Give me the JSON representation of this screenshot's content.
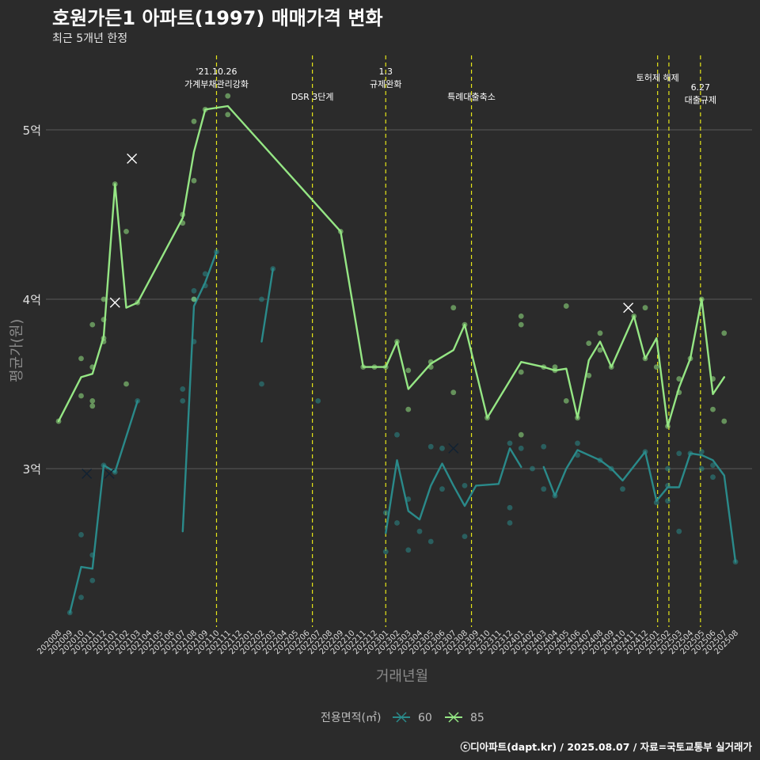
{
  "chart_data": {
    "type": "line",
    "title": "호원가든1 아파트(1997) 매매가격 변화",
    "subtitle": "최근 5개년 한정",
    "xlabel": "거래년월",
    "ylabel": "평균가(원)",
    "caption": "ⓒ디아파트(dapt.kr) / 2025.08.07 / 자료=국토교통부 실거래가",
    "legend_title": "전용면적(㎡)",
    "legend_position": "bottom",
    "grid": true,
    "ylim": [
      2.0,
      5.55
    ],
    "y_ticks": [
      {
        "value": 3,
        "label": "3억"
      },
      {
        "value": 4,
        "label": "4억"
      },
      {
        "value": 5,
        "label": "5억"
      }
    ],
    "months": [
      "202008",
      "202009",
      "202010",
      "202011",
      "202012",
      "202101",
      "202102",
      "202103",
      "202104",
      "202105",
      "202106",
      "202107",
      "202108",
      "202109",
      "202110",
      "202111",
      "202112",
      "202201",
      "202202",
      "202203",
      "202204",
      "202205",
      "202206",
      "202207",
      "202208",
      "202209",
      "202210",
      "202211",
      "202212",
      "202301",
      "202302",
      "202303",
      "202304",
      "202305",
      "202306",
      "202307",
      "202308",
      "202309",
      "202310",
      "202311",
      "202312",
      "202401",
      "202402",
      "202403",
      "202404",
      "202405",
      "202406",
      "202407",
      "202408",
      "202409",
      "202410",
      "202411",
      "202412",
      "202501",
      "202502",
      "202503",
      "202504",
      "202505",
      "202506",
      "202507",
      "202508"
    ],
    "events": [
      {
        "x": 14.0,
        "label": [
          "'21.10.26",
          "가계부채관리강화"
        ],
        "level": 0
      },
      {
        "x": 22.5,
        "label": [
          "DSR 3단계"
        ],
        "level": 1
      },
      {
        "x": 29.0,
        "label": [
          "1.3",
          "규제완화"
        ],
        "level": 0
      },
      {
        "x": 36.6,
        "label": [
          "특례대출축소"
        ],
        "level": 1
      },
      {
        "x": 53.1,
        "label": [
          "토허제 해제"
        ],
        "level": 0
      },
      {
        "x": 54.1,
        "label": [],
        "level": 0
      },
      {
        "x": 56.9,
        "label": [
          "6.27",
          "대출규제"
        ],
        "level": 0
      }
    ],
    "series": [
      {
        "name": "60",
        "color": "#2a8a8a",
        "segments": [
          [
            [
              1,
              2.15
            ],
            [
              2,
              2.42
            ],
            [
              3,
              2.41
            ],
            [
              4,
              3.02
            ],
            [
              5,
              2.98
            ],
            [
              7,
              3.4
            ]
          ],
          [
            [
              11,
              2.63
            ],
            [
              12,
              3.96
            ],
            [
              13,
              4.1
            ],
            [
              14,
              4.28
            ]
          ],
          [
            [
              18,
              3.75
            ],
            [
              19,
              4.18
            ]
          ],
          [
            [
              29,
              2.62
            ],
            [
              30,
              3.05
            ],
            [
              31,
              2.75
            ],
            [
              32,
              2.7
            ],
            [
              33,
              2.9
            ],
            [
              34,
              3.03
            ],
            [
              35,
              2.9
            ],
            [
              36,
              2.78
            ],
            [
              37,
              2.9
            ],
            [
              39,
              2.91
            ],
            [
              40,
              3.12
            ],
            [
              41,
              3.01
            ]
          ],
          [
            [
              43,
              3.01
            ],
            [
              44,
              2.84
            ],
            [
              45,
              3.0
            ],
            [
              46,
              3.11
            ],
            [
              48,
              3.05
            ],
            [
              49,
              3.0
            ],
            [
              50,
              2.93
            ],
            [
              52,
              3.1
            ],
            [
              53,
              2.81
            ],
            [
              54,
              2.89
            ],
            [
              55,
              2.89
            ],
            [
              56,
              3.09
            ],
            [
              57,
              3.08
            ],
            [
              58,
              3.05
            ],
            [
              59,
              2.96
            ],
            [
              60,
              2.45
            ]
          ]
        ],
        "points": [
          [
            1,
            2.15
          ],
          [
            2,
            2.24
          ],
          [
            2,
            2.61
          ],
          [
            3,
            2.34
          ],
          [
            3,
            2.49
          ],
          [
            4,
            3.02
          ],
          [
            5,
            2.98
          ],
          [
            7,
            3.4
          ],
          [
            11,
            3.4
          ],
          [
            11,
            3.47
          ],
          [
            12,
            3.75
          ],
          [
            12,
            4.0
          ],
          [
            12,
            4.05
          ],
          [
            13,
            4.08
          ],
          [
            13,
            4.15
          ],
          [
            14,
            4.28
          ],
          [
            18,
            3.5
          ],
          [
            18,
            4.0
          ],
          [
            19,
            4.18
          ],
          [
            23,
            3.4
          ],
          [
            29,
            2.51
          ],
          [
            29,
            2.74
          ],
          [
            30,
            3.2
          ],
          [
            30,
            2.68
          ],
          [
            31,
            2.52
          ],
          [
            31,
            2.82
          ],
          [
            32,
            2.63
          ],
          [
            33,
            2.57
          ],
          [
            33,
            3.13
          ],
          [
            34,
            3.12
          ],
          [
            34,
            2.88
          ],
          [
            36,
            2.6
          ],
          [
            36,
            2.9
          ],
          [
            40,
            3.15
          ],
          [
            40,
            2.68
          ],
          [
            40,
            2.77
          ],
          [
            41,
            3.12
          ],
          [
            42,
            3.0
          ],
          [
            43,
            3.13
          ],
          [
            43,
            2.88
          ],
          [
            44,
            2.84
          ],
          [
            46,
            3.08
          ],
          [
            46,
            3.15
          ],
          [
            48,
            3.05
          ],
          [
            49,
            3.0
          ],
          [
            50,
            2.88
          ],
          [
            52,
            3.1
          ],
          [
            53,
            2.8
          ],
          [
            54,
            2.81
          ],
          [
            54,
            2.9
          ],
          [
            54,
            3.0
          ],
          [
            55,
            2.63
          ],
          [
            55,
            3.09
          ],
          [
            56,
            3.09
          ],
          [
            57,
            3.0
          ],
          [
            57,
            3.1
          ],
          [
            58,
            2.95
          ],
          [
            58,
            3.02
          ],
          [
            60,
            2.45
          ]
        ],
        "crosses": [
          [
            2.5,
            2.97
          ],
          [
            4.5,
            2.97
          ],
          [
            35,
            3.12
          ]
        ]
      },
      {
        "name": "85",
        "color": "#95e684",
        "segments": [
          [
            [
              0,
              3.28
            ],
            [
              2,
              3.54
            ],
            [
              3,
              3.56
            ],
            [
              4,
              3.78
            ],
            [
              5,
              4.68
            ],
            [
              6,
              3.95
            ],
            [
              7,
              3.98
            ],
            [
              11,
              4.48
            ],
            [
              12,
              4.87
            ],
            [
              13,
              5.12
            ],
            [
              15,
              5.14
            ],
            [
              25,
              4.4
            ],
            [
              27,
              3.6
            ],
            [
              28,
              3.6
            ],
            [
              29,
              3.6
            ],
            [
              30,
              3.75
            ],
            [
              31,
              3.47
            ],
            [
              33,
              3.62
            ],
            [
              35,
              3.7
            ],
            [
              36,
              3.85
            ],
            [
              38,
              3.3
            ],
            [
              41,
              3.63
            ],
            [
              43,
              3.6
            ],
            [
              44,
              3.58
            ],
            [
              45,
              3.59
            ],
            [
              46,
              3.3
            ],
            [
              47,
              3.64
            ],
            [
              48,
              3.75
            ],
            [
              49,
              3.6
            ],
            [
              51,
              3.9
            ],
            [
              52,
              3.65
            ],
            [
              53,
              3.77
            ],
            [
              54,
              3.25
            ],
            [
              55,
              3.48
            ],
            [
              56,
              3.65
            ],
            [
              57,
              4.0
            ],
            [
              58,
              3.44
            ],
            [
              59,
              3.54
            ]
          ]
        ],
        "points": [
          [
            0,
            3.28
          ],
          [
            2,
            3.43
          ],
          [
            2,
            3.65
          ],
          [
            3,
            3.37
          ],
          [
            3,
            3.4
          ],
          [
            3,
            3.6
          ],
          [
            3,
            3.85
          ],
          [
            4,
            3.75
          ],
          [
            4,
            3.77
          ],
          [
            4,
            3.88
          ],
          [
            4,
            4.0
          ],
          [
            5,
            4.68
          ],
          [
            6,
            3.5
          ],
          [
            6,
            4.4
          ],
          [
            7,
            3.98
          ],
          [
            11,
            4.45
          ],
          [
            11,
            4.5
          ],
          [
            12,
            4.7
          ],
          [
            12,
            5.05
          ],
          [
            12,
            4.0
          ],
          [
            13,
            5.12
          ],
          [
            15,
            5.2
          ],
          [
            15,
            5.09
          ],
          [
            25,
            4.4
          ],
          [
            27,
            3.6
          ],
          [
            28,
            3.6
          ],
          [
            29,
            3.6
          ],
          [
            30,
            3.75
          ],
          [
            31,
            3.58
          ],
          [
            31,
            3.35
          ],
          [
            33,
            3.6
          ],
          [
            33,
            3.63
          ],
          [
            35,
            3.45
          ],
          [
            35,
            3.95
          ],
          [
            36,
            3.85
          ],
          [
            38,
            3.3
          ],
          [
            41,
            3.2
          ],
          [
            41,
            3.57
          ],
          [
            41,
            3.85
          ],
          [
            41,
            3.9
          ],
          [
            43,
            3.6
          ],
          [
            44,
            3.58
          ],
          [
            44,
            3.6
          ],
          [
            45,
            3.96
          ],
          [
            45,
            3.4
          ],
          [
            46,
            3.3
          ],
          [
            47,
            3.74
          ],
          [
            47,
            3.55
          ],
          [
            48,
            3.7
          ],
          [
            48,
            3.8
          ],
          [
            49,
            3.6
          ],
          [
            51,
            3.9
          ],
          [
            52,
            3.65
          ],
          [
            52,
            3.95
          ],
          [
            53,
            3.6
          ],
          [
            54,
            3.25
          ],
          [
            55,
            3.45
          ],
          [
            55,
            3.53
          ],
          [
            56,
            3.65
          ],
          [
            57,
            4.0
          ],
          [
            58,
            3.35
          ],
          [
            58,
            3.53
          ],
          [
            59,
            3.8
          ],
          [
            59,
            3.28
          ]
        ],
        "crosses": [
          [
            6.5,
            4.83
          ],
          [
            5,
            3.98
          ],
          [
            50.5,
            3.95
          ]
        ]
      }
    ]
  }
}
